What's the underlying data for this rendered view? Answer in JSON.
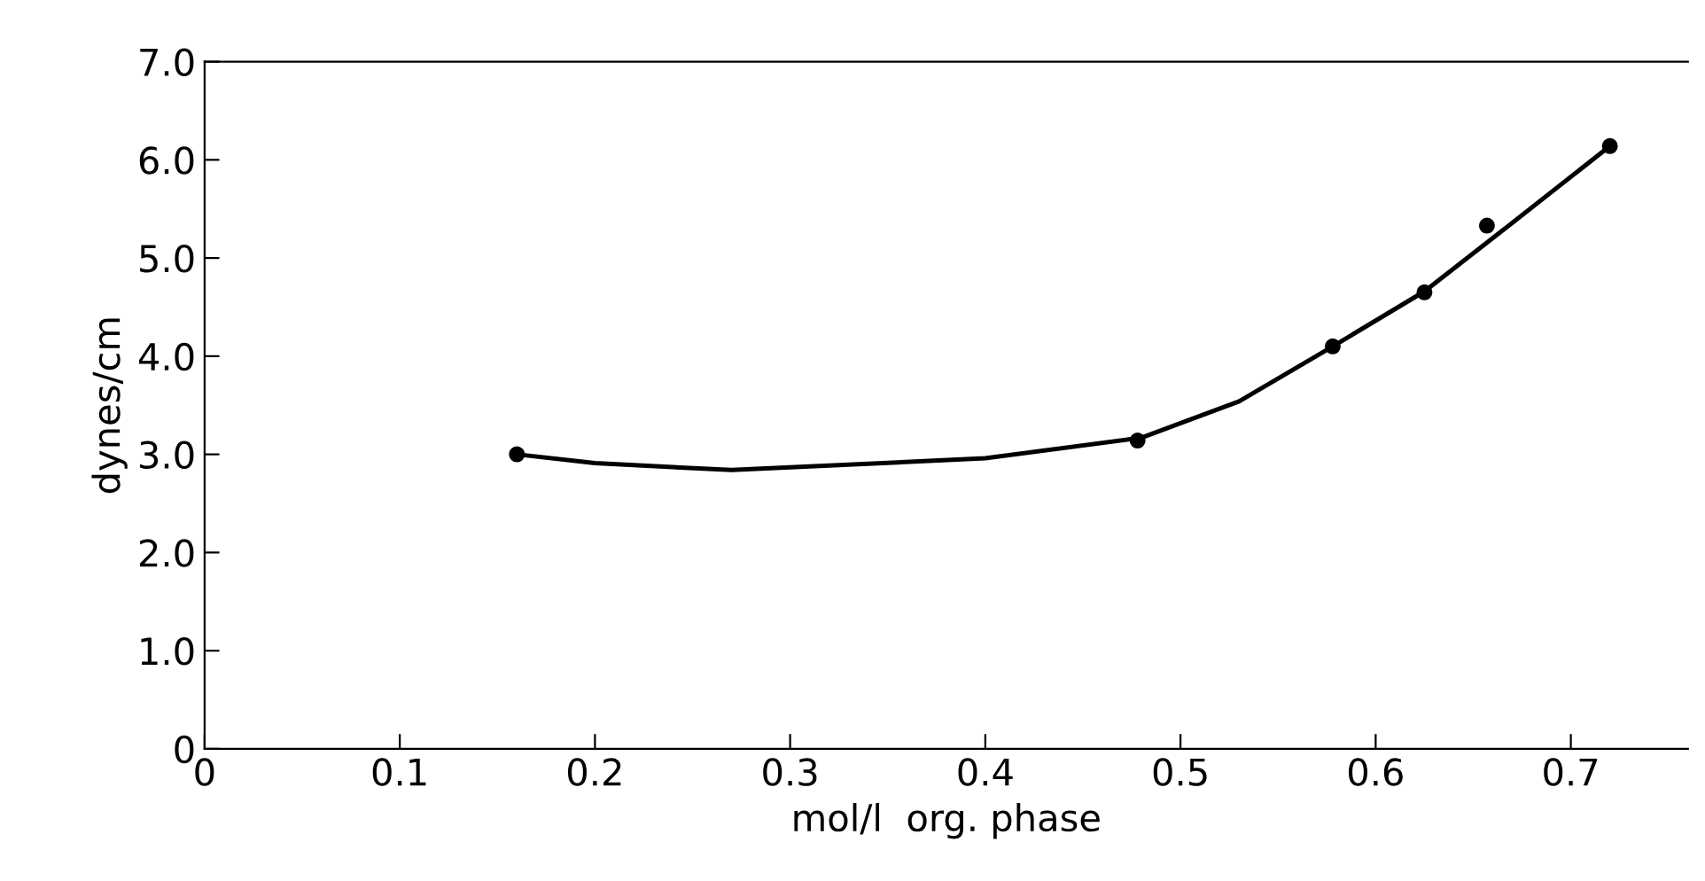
{
  "chart_data": {
    "type": "line",
    "xlabel": "mol/l  org. phase",
    "ylabel": "dynes/cm",
    "xlim": [
      0,
      0.76
    ],
    "ylim": [
      0,
      7.0
    ],
    "xticks": [
      0,
      0.1,
      0.2,
      0.3,
      0.4,
      0.5,
      0.6,
      0.7
    ],
    "yticks": [
      0,
      {
        "value": 1,
        "label": "1.0"
      },
      {
        "value": 2,
        "label": "2.0"
      },
      {
        "value": 3,
        "label": "3.0"
      },
      {
        "value": 4,
        "label": "4.0"
      },
      {
        "value": 5,
        "label": "5.0"
      },
      {
        "value": 6,
        "label": "6.0"
      },
      {
        "value": 7,
        "label": "7.0"
      }
    ],
    "grid": false,
    "legend": false,
    "series": [
      {
        "type": "scatter",
        "color": "#000000",
        "marker": "circle",
        "x": [
          0.16,
          0.478,
          0.578,
          0.625,
          0.657,
          0.72
        ],
        "values": [
          3.0,
          3.14,
          4.1,
          4.65,
          5.33,
          6.14
        ]
      },
      {
        "color": "#000000",
        "marker": "none",
        "line_style": "solid",
        "x": [
          0.16,
          0.2,
          0.27,
          0.4,
          0.48,
          0.53,
          0.578,
          0.625,
          0.665,
          0.72
        ],
        "values": [
          3.0,
          2.91,
          2.84,
          2.96,
          3.17,
          3.54,
          4.1,
          4.66,
          5.28,
          6.14
        ]
      }
    ]
  }
}
